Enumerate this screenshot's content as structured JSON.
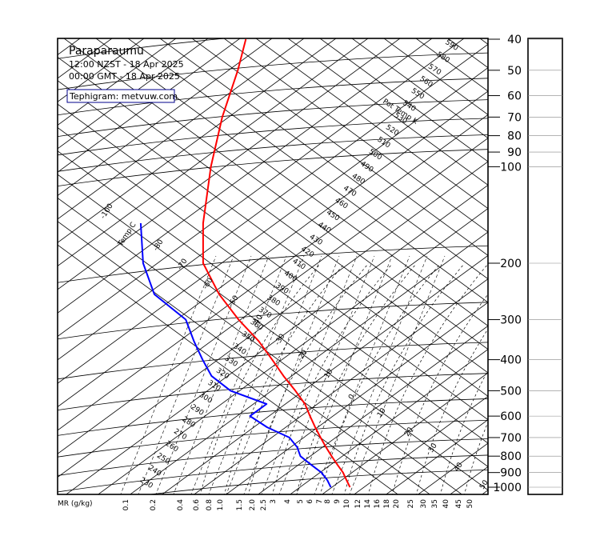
{
  "header": {
    "title": "Paraparaumu",
    "local_time": "12:00 NZST - 18 Apr 2025",
    "gmt_time": "00:00 GMT - 18 Apr 2025",
    "credit": "Tephigram: metvuw.com"
  },
  "labels": {
    "temp_axis": "Temp C",
    "pot_temp_axis": "Pot Temp K",
    "mr_axis": "MR (g/kg)"
  },
  "colors": {
    "temperature": "#ff0000",
    "dewpoint": "#0000ff",
    "grid": "#000000"
  },
  "chart_data": {
    "type": "line",
    "diagram": "tephigram",
    "pressure_levels_hpa": [
      40,
      50,
      60,
      70,
      80,
      90,
      100,
      200,
      300,
      400,
      500,
      600,
      700,
      800,
      900,
      1000
    ],
    "pressure_tick_labels": [
      "40",
      "50",
      "60",
      "70",
      "80",
      "90",
      "100",
      "200",
      "300",
      "400",
      "500",
      "600",
      "700",
      "800",
      "900",
      "1000"
    ],
    "potential_temperature_labels": [
      "590",
      "580",
      "570",
      "560",
      "550",
      "540",
      "530",
      "520",
      "510",
      "500",
      "490",
      "480",
      "470",
      "460",
      "450",
      "440",
      "430",
      "420",
      "410",
      "400",
      "390",
      "380",
      "370",
      "360",
      "350",
      "340",
      "330",
      "320",
      "310",
      "300",
      "290",
      "280",
      "270",
      "260",
      "250",
      "240",
      "230"
    ],
    "temperature_labels": [
      "-100",
      "-80",
      "-70",
      "-60",
      "-50",
      "-40",
      "-30",
      "-20",
      "-10",
      "0",
      "10",
      "20",
      "30",
      "40",
      "50"
    ],
    "mixing_ratio_labels": [
      "0.1",
      "0.2",
      "0.4",
      "0.6",
      "0.8",
      "1.0",
      "1.5",
      "2.0",
      "2.5",
      "3",
      "4",
      "5",
      "6",
      "7",
      "8",
      "9",
      "10",
      "12",
      "14",
      "16",
      "18",
      "20",
      "25",
      "30",
      "35",
      "40",
      "45",
      "50"
    ],
    "series": [
      {
        "name": "",
        "variable": "temperature",
        "points": [
          {
            "p": 1000,
            "t": 20.5
          },
          {
            "p": 950,
            "t": 18.5
          },
          {
            "p": 900,
            "t": 16.5
          },
          {
            "p": 850,
            "t": 13.5
          },
          {
            "p": 800,
            "t": 10.5
          },
          {
            "p": 750,
            "t": 7.5
          },
          {
            "p": 700,
            "t": 4.5
          },
          {
            "p": 650,
            "t": 1.5
          },
          {
            "p": 600,
            "t": -1.5
          },
          {
            "p": 550,
            "t": -4.5
          },
          {
            "p": 500,
            "t": -9.5
          },
          {
            "p": 450,
            "t": -15.5
          },
          {
            "p": 400,
            "t": -21.5
          },
          {
            "p": 350,
            "t": -28.5
          },
          {
            "p": 300,
            "t": -38.5
          },
          {
            "p": 250,
            "t": -48.5
          },
          {
            "p": 200,
            "t": -57.5
          },
          {
            "p": 150,
            "t": -60.5
          },
          {
            "p": 100,
            "t": -61.5
          },
          {
            "p": 70,
            "t": -60.5
          },
          {
            "p": 50,
            "t": -57.5
          },
          {
            "p": 40,
            "t": -56.5
          }
        ]
      },
      {
        "name": "",
        "variable": "dewpoint",
        "points": [
          {
            "p": 1000,
            "t": 12.5
          },
          {
            "p": 950,
            "t": 10.5
          },
          {
            "p": 900,
            "t": 7.5
          },
          {
            "p": 850,
            "t": 2.5
          },
          {
            "p": 800,
            "t": -2.5
          },
          {
            "p": 750,
            "t": -4.5
          },
          {
            "p": 700,
            "t": -8.5
          },
          {
            "p": 650,
            "t": -18.5
          },
          {
            "p": 600,
            "t": -26.5
          },
          {
            "p": 550,
            "t": -20.5
          },
          {
            "p": 500,
            "t": -36.5
          },
          {
            "p": 450,
            "t": -45.5
          },
          {
            "p": 400,
            "t": -50.5
          },
          {
            "p": 350,
            "t": -55.5
          },
          {
            "p": 300,
            "t": -60.5
          },
          {
            "p": 250,
            "t": -75.5
          },
          {
            "p": 200,
            "t": -82.5
          },
          {
            "p": 150,
            "t": -86.5
          }
        ]
      }
    ],
    "ylim_hpa": [
      40,
      1000
    ],
    "y_scale": "log-pressure",
    "grid": true,
    "legend": "none"
  }
}
